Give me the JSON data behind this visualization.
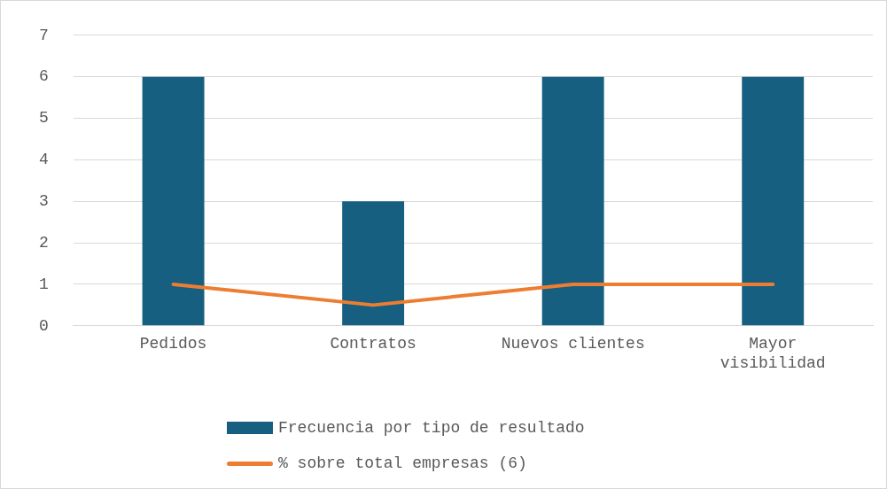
{
  "chart_data": {
    "type": "bar",
    "categories": [
      "Pedidos",
      "Contratos",
      "Nuevos clientes",
      "Mayor visibilidad"
    ],
    "series": [
      {
        "name": "Frecuencia por tipo de resultado",
        "color": "#175f80",
        "values": [
          6,
          3,
          6,
          6
        ]
      },
      {
        "name": "% sobre total empresas (6)",
        "type": "line",
        "color": "#ed7d31",
        "values": [
          1,
          0.5,
          1,
          1
        ]
      }
    ],
    "ylim": [
      0,
      7
    ],
    "yticks": [
      0,
      1,
      2,
      3,
      4,
      5,
      6,
      7
    ],
    "grid": "y",
    "legend": "bottom",
    "marker": "none"
  }
}
